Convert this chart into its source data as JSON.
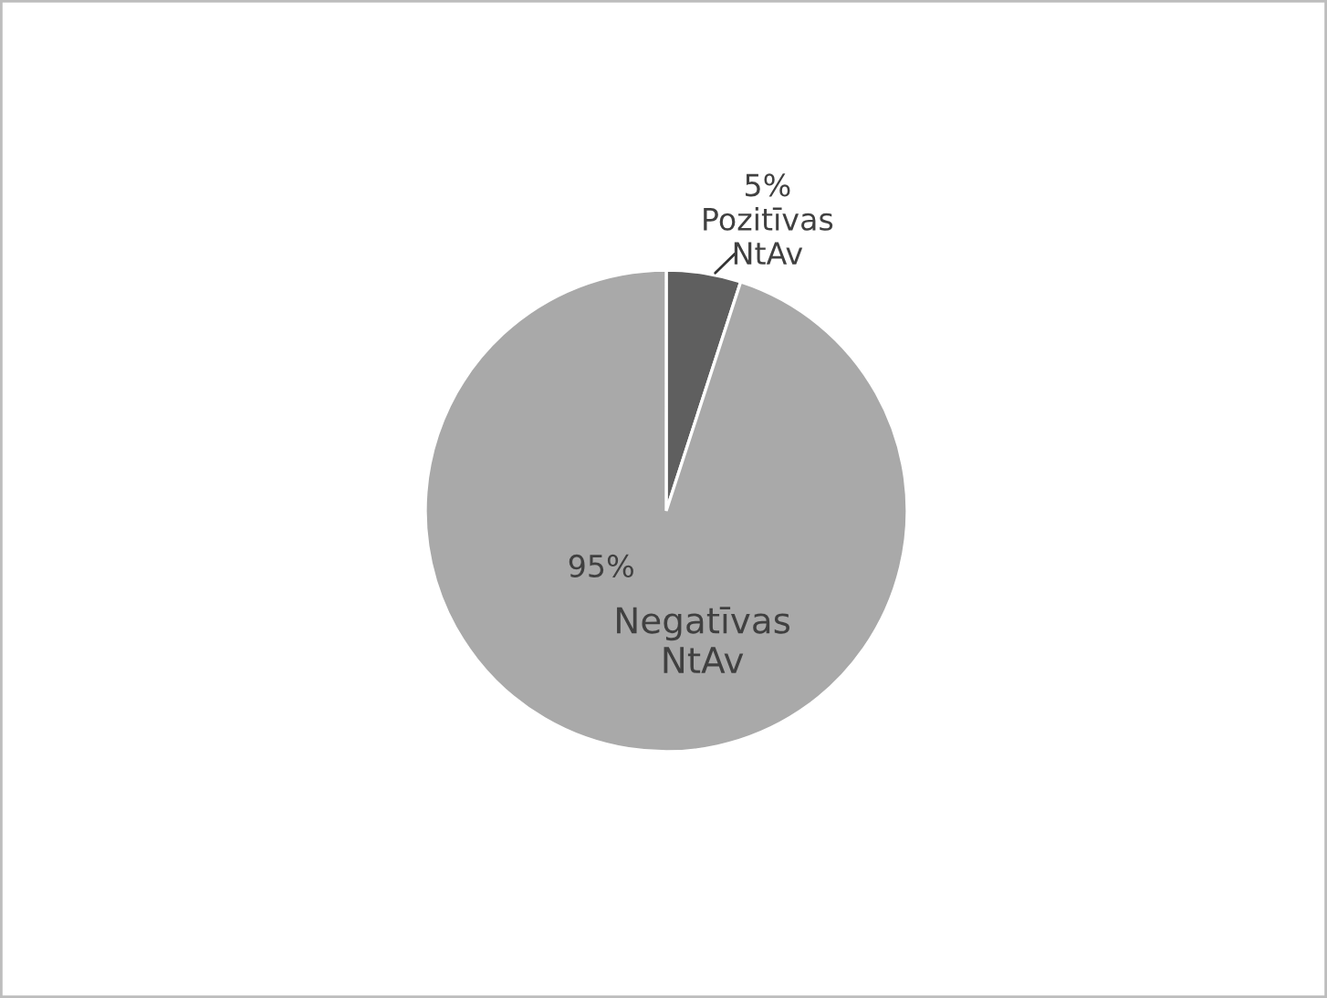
{
  "chart_data": {
    "type": "pie",
    "categories": [
      "Pozitīvas\nNtAv",
      "Negatīvas\nNtAv"
    ],
    "values": [
      5,
      95
    ],
    "colors": [
      "#5f5f5f",
      "#a9a9a9"
    ],
    "value_labels": [
      "5%",
      "95%"
    ],
    "legend": false
  }
}
